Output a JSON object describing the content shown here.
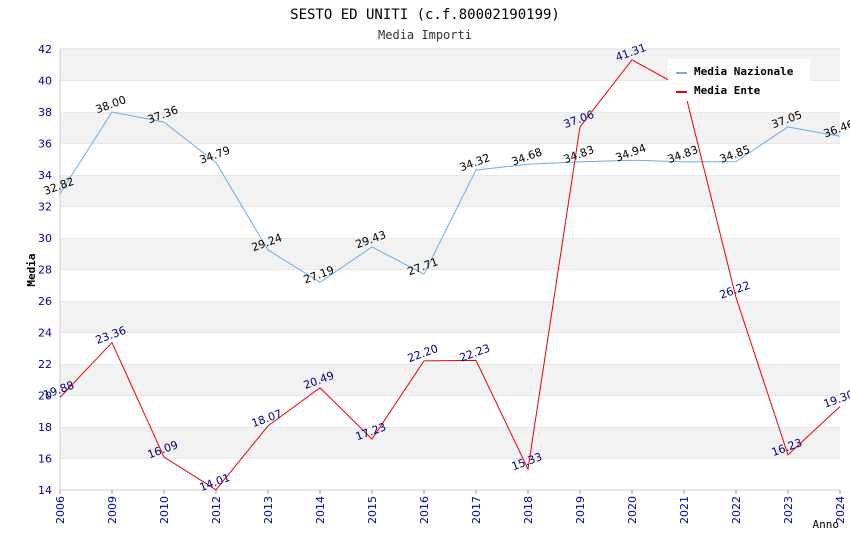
{
  "chart_data": {
    "type": "line",
    "title": "SESTO ED UNITI (c.f.80002190199)",
    "subtitle": "Media Importi",
    "xlabel": "Anno",
    "ylabel": "Media",
    "categories": [
      "2006",
      "2009",
      "2010",
      "2012",
      "2013",
      "2014",
      "2015",
      "2016",
      "2017",
      "2018",
      "2019",
      "2020",
      "2021",
      "2022",
      "2023",
      "2024"
    ],
    "ylim": [
      14,
      42
    ],
    "yticks": [
      14,
      16,
      18,
      20,
      22,
      24,
      26,
      28,
      30,
      32,
      34,
      36,
      38,
      40,
      42
    ],
    "grid": true,
    "legend_position": "top-right",
    "series": [
      {
        "name": "Media Nazionale",
        "color": "#6aaee8",
        "label_color": "#000000",
        "values": [
          32.82,
          38.0,
          37.36,
          34.79,
          29.24,
          27.19,
          29.43,
          27.71,
          34.32,
          34.68,
          34.83,
          34.94,
          34.83,
          34.85,
          37.05,
          36.46
        ],
        "labels": [
          "32.82",
          "38.00",
          "37.36",
          "34.79",
          "29.24",
          "27.19",
          "29.43",
          "27.71",
          "34.32",
          "34.68",
          "34.83",
          "34.94",
          "34.83",
          "34.85",
          "37.05",
          "36.46"
        ]
      },
      {
        "name": "Media Ente",
        "color": "#ee0000",
        "label_color": "#000080",
        "values": [
          19.88,
          23.36,
          16.09,
          14.01,
          18.07,
          20.49,
          17.23,
          22.2,
          22.23,
          15.33,
          37.06,
          41.31,
          39.5,
          26.22,
          16.23,
          19.3
        ],
        "labels": [
          "19.88",
          "23.36",
          "16.09",
          "14.01",
          "18.07",
          "20.49",
          "17.23",
          "22.20",
          "22.23",
          "15.33",
          "37.06",
          "41.31",
          "",
          "26.22",
          "16.23",
          "19.30"
        ]
      }
    ]
  }
}
